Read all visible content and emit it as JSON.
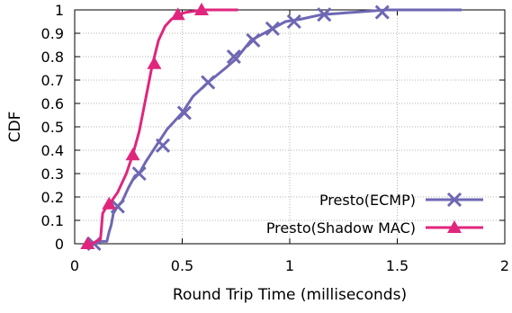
{
  "chart_data": {
    "type": "line",
    "xlabel": "Round Trip Time (milliseconds)",
    "ylabel": "CDF",
    "xlim": [
      0,
      2
    ],
    "ylim": [
      0,
      1
    ],
    "x_ticks": [
      "0",
      "0.5",
      "1",
      "1.5",
      "2"
    ],
    "x_tick_values": [
      0,
      0.5,
      1,
      1.5,
      2
    ],
    "y_ticks": [
      "0",
      "0.1",
      "0.2",
      "0.3",
      "0.4",
      "0.5",
      "0.6",
      "0.7",
      "0.8",
      "0.9",
      "1"
    ],
    "y_tick_values": [
      0,
      0.1,
      0.2,
      0.3,
      0.4,
      0.5,
      0.6,
      0.7,
      0.8,
      0.9,
      1
    ],
    "grid": true,
    "legend_position": "bottom-right",
    "series": [
      {
        "name": "Presto(ECMP)",
        "color": "#6e67b3",
        "marker": "x",
        "line": [
          [
            0.06,
            0
          ],
          [
            0.1,
            0
          ],
          [
            0.12,
            0.01
          ],
          [
            0.15,
            0.01
          ],
          [
            0.16,
            0.05
          ],
          [
            0.17,
            0.08
          ],
          [
            0.18,
            0.13
          ],
          [
            0.2,
            0.16
          ],
          [
            0.22,
            0.18
          ],
          [
            0.25,
            0.24
          ],
          [
            0.28,
            0.29
          ],
          [
            0.3,
            0.3
          ],
          [
            0.33,
            0.35
          ],
          [
            0.38,
            0.42
          ],
          [
            0.43,
            0.49
          ],
          [
            0.5,
            0.56
          ],
          [
            0.55,
            0.63
          ],
          [
            0.62,
            0.69
          ],
          [
            0.7,
            0.75
          ],
          [
            0.75,
            0.79
          ],
          [
            0.82,
            0.87
          ],
          [
            0.9,
            0.91
          ],
          [
            0.98,
            0.95
          ],
          [
            1.05,
            0.96
          ],
          [
            1.15,
            0.98
          ],
          [
            1.3,
            0.99
          ],
          [
            1.45,
            1.0
          ],
          [
            1.8,
            1.0
          ]
        ],
        "markers": [
          [
            0.09,
            0
          ],
          [
            0.2,
            0.16
          ],
          [
            0.3,
            0.3
          ],
          [
            0.41,
            0.42
          ],
          [
            0.51,
            0.56
          ],
          [
            0.62,
            0.69
          ],
          [
            0.74,
            0.8
          ],
          [
            0.83,
            0.87
          ],
          [
            0.92,
            0.92
          ],
          [
            1.02,
            0.95
          ],
          [
            1.16,
            0.98
          ],
          [
            1.43,
            0.99
          ]
        ]
      },
      {
        "name": "Presto(Shadow MAC)",
        "color": "#e0267c",
        "marker": "triangle",
        "line": [
          [
            0.05,
            0
          ],
          [
            0.08,
            0
          ],
          [
            0.1,
            0.01
          ],
          [
            0.12,
            0.02
          ],
          [
            0.13,
            0.13
          ],
          [
            0.15,
            0.16
          ],
          [
            0.17,
            0.18
          ],
          [
            0.2,
            0.22
          ],
          [
            0.24,
            0.3
          ],
          [
            0.27,
            0.38
          ],
          [
            0.3,
            0.48
          ],
          [
            0.33,
            0.62
          ],
          [
            0.36,
            0.76
          ],
          [
            0.39,
            0.87
          ],
          [
            0.42,
            0.93
          ],
          [
            0.45,
            0.96
          ],
          [
            0.48,
            0.98
          ],
          [
            0.52,
            0.99
          ],
          [
            0.6,
            1.0
          ],
          [
            0.76,
            1.0
          ]
        ],
        "markers": [
          [
            0.06,
            0
          ],
          [
            0.16,
            0.17
          ],
          [
            0.27,
            0.38
          ],
          [
            0.37,
            0.77
          ],
          [
            0.48,
            0.98
          ],
          [
            0.59,
            1.0
          ]
        ]
      }
    ]
  }
}
